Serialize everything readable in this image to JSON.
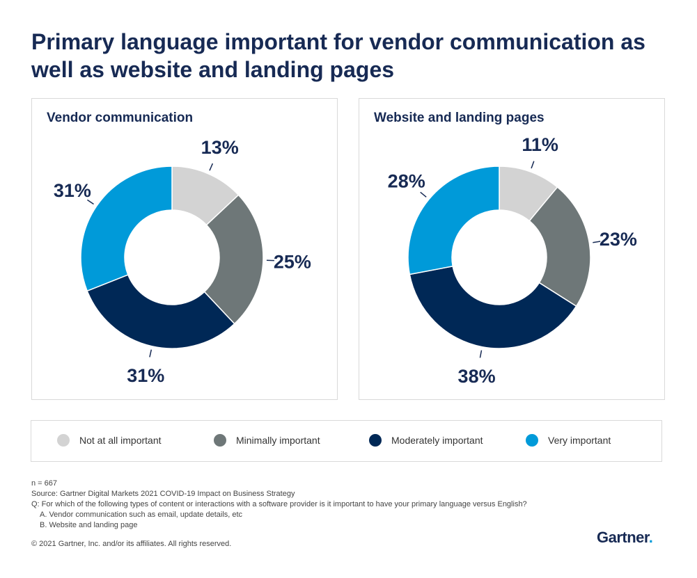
{
  "title": "Primary language important for vendor communication as well as website and landing pages",
  "colors": {
    "title": "#172a54",
    "categories": [
      "#d3d3d3",
      "#6e7778",
      "#002856",
      "#009ad9"
    ]
  },
  "chart_data": [
    {
      "type": "pie",
      "donut": true,
      "title": "Vendor communication",
      "categories": [
        "Not at all important",
        "Minimally important",
        "Moderately important",
        "Very important"
      ],
      "values": [
        13,
        25,
        31,
        31
      ],
      "unit": "%"
    },
    {
      "type": "pie",
      "donut": true,
      "title": "Website and landing pages",
      "categories": [
        "Not at all important",
        "Minimally important",
        "Moderately important",
        "Very important"
      ],
      "values": [
        11,
        23,
        38,
        28
      ],
      "unit": "%"
    }
  ],
  "legend": [
    "Not at all important",
    "Minimally important",
    "Moderately important",
    "Very important"
  ],
  "notes": {
    "n": "n = 667",
    "source": "Source: Gartner Digital Markets 2021 COVID-19 Impact on Business Strategy",
    "q": "Q: For which of the following types of content or interactions with a software provider is it important to have your primary language versus English?",
    "a": "A. Vendor communication such as email, update details, etc",
    "b": "B. Website and landing page"
  },
  "copyright": "© 2021 Gartner, Inc. and/or its affiliates. All rights reserved.",
  "logo": "Gartner."
}
